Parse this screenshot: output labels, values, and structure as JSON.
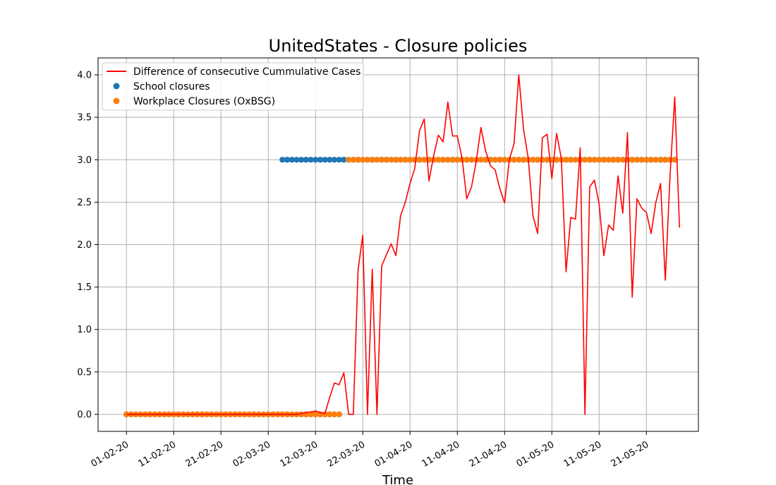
{
  "chart_data": {
    "type": "line",
    "title": "UnitedStates - Closure policies",
    "xlabel": "Time",
    "ylabel": "",
    "ylim": [
      -0.2,
      4.2
    ],
    "xlim": [
      "2020-01-26",
      "2020-06-01"
    ],
    "grid": true,
    "legend_placement": "top-left",
    "x_ticks": [
      "01-02-20",
      "11-02-20",
      "21-02-20",
      "02-03-20",
      "12-03-20",
      "22-03-20",
      "01-04-20",
      "11-04-20",
      "21-04-20",
      "01-05-20",
      "11-05-20",
      "21-05-20"
    ],
    "y_ticks": [
      "0.0",
      "0.5",
      "1.0",
      "1.5",
      "2.0",
      "2.5",
      "3.0",
      "3.5",
      "4.0"
    ],
    "series": [
      {
        "name": "Difference of consecutive Cummulative Cases",
        "kind": "line",
        "color": "#ff0000",
        "start_date": "2020-02-01",
        "values": [
          0,
          0,
          0,
          0,
          0,
          0,
          0,
          0,
          0,
          0,
          0,
          0,
          0,
          0,
          0,
          0,
          0,
          0,
          0,
          0,
          0,
          0,
          0,
          0,
          0,
          0,
          0,
          0,
          0,
          0,
          0,
          0,
          0,
          0,
          0,
          0,
          0,
          0.01,
          0.02,
          0.03,
          0.04,
          0.02,
          0.01,
          0.2,
          0.37,
          0.35,
          0.49,
          0,
          0,
          1.7,
          2.11,
          0,
          1.71,
          0,
          1.75,
          1.88,
          2.01,
          1.87,
          2.34,
          2.5,
          2.72,
          2.9,
          3.34,
          3.48,
          2.75,
          3.05,
          3.29,
          3.21,
          3.68,
          3.28,
          3.28,
          3.02,
          2.54,
          2.68,
          2.98,
          3.38,
          3.1,
          2.93,
          2.88,
          2.66,
          2.49,
          3.0,
          3.19,
          4.0,
          3.36,
          3.02,
          2.34,
          2.13,
          3.26,
          3.3,
          2.78,
          3.31,
          3.02,
          1.68,
          2.32,
          2.3,
          3.14,
          0,
          2.68,
          2.76,
          2.48,
          1.87,
          2.23,
          2.17,
          2.81,
          2.37,
          3.32,
          1.38,
          2.54,
          2.43,
          2.38,
          2.13,
          2.5,
          2.72,
          1.58,
          2.81,
          3.74,
          2.2
        ]
      },
      {
        "name": "School closures",
        "kind": "scatter",
        "color": "#1f77b4",
        "segments": [
          {
            "from": "2020-02-01",
            "to": "2020-03-17",
            "value": 0
          },
          {
            "from": "2020-03-05",
            "to": "2020-05-27",
            "value": 3
          }
        ]
      },
      {
        "name": "Workplace Closures (OxBSG)",
        "kind": "scatter",
        "color": "#ff7f0e",
        "segments": [
          {
            "from": "2020-02-01",
            "to": "2020-03-17",
            "value": 0
          },
          {
            "from": "2020-03-19",
            "to": "2020-05-27",
            "value": 3
          }
        ]
      }
    ]
  }
}
